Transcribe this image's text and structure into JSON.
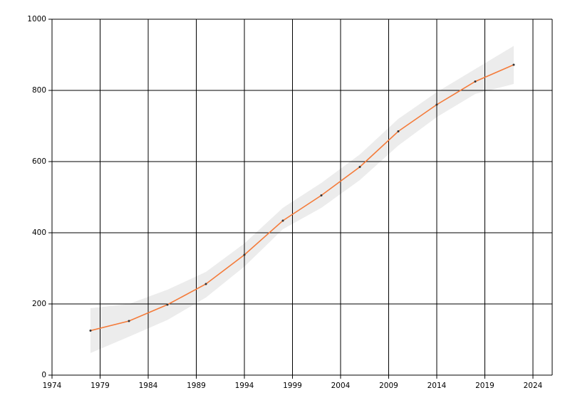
{
  "chart_data": {
    "type": "line",
    "x": [
      1978,
      1982,
      1986,
      1990,
      1994,
      1998,
      2002,
      2006,
      2010,
      2014,
      2018,
      2022
    ],
    "series": [
      {
        "color": "#f47b3a",
        "values": [
          125,
          152,
          198,
          256,
          338,
          434,
          505,
          585,
          685,
          760,
          825,
          872
        ]
      }
    ],
    "band": {
      "color": "#ececec",
      "upper": [
        188,
        200,
        240,
        290,
        370,
        470,
        540,
        620,
        720,
        795,
        860,
        925
      ],
      "lower": [
        62,
        108,
        155,
        218,
        305,
        410,
        470,
        548,
        645,
        725,
        790,
        818
      ]
    },
    "xlim": [
      1974,
      2026
    ],
    "xticks": [
      1974,
      1979,
      1984,
      1989,
      1994,
      1999,
      2004,
      2009,
      2014,
      2019,
      2024
    ],
    "ylim": [
      0,
      1000
    ],
    "yticks": [
      0,
      200,
      400,
      600,
      800,
      1000
    ],
    "grid": true
  }
}
